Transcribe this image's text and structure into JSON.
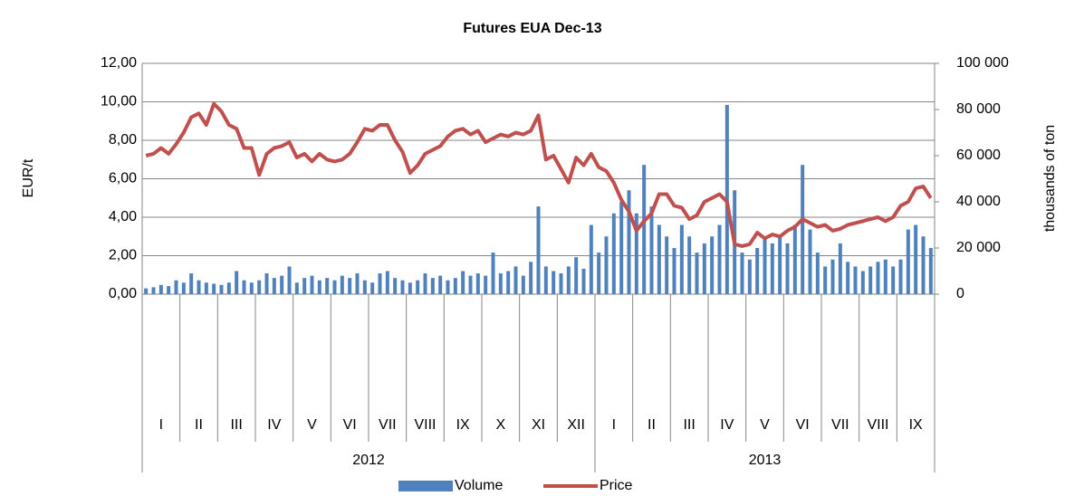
{
  "chart_data": {
    "type": "bar-line",
    "title": "Futures EUA Dec-13",
    "ylabel": "EUR/t",
    "y2label": "thousands of ton",
    "x_groups": [
      {
        "name": "2012",
        "categories": [
          "I",
          "II",
          "III",
          "IV",
          "V",
          "VI",
          "VII",
          "VIII",
          "IX",
          "X",
          "XI",
          "XII"
        ]
      },
      {
        "name": "2013",
        "categories": [
          "I",
          "II",
          "III",
          "IV",
          "V",
          "VI",
          "VII",
          "VIII",
          "IX"
        ]
      }
    ],
    "ylim": [
      0,
      12
    ],
    "yticks": [
      {
        "value": 0,
        "label": "0,00"
      },
      {
        "value": 2,
        "label": "2,00"
      },
      {
        "value": 4,
        "label": "4,00"
      },
      {
        "value": 6,
        "label": "6,00"
      },
      {
        "value": 8,
        "label": "8,00"
      },
      {
        "value": 10,
        "label": "10,00"
      },
      {
        "value": 12,
        "label": "12,00"
      }
    ],
    "y2lim": [
      0,
      100000
    ],
    "y2ticks": [
      0,
      {
        "value": 20000,
        "label": "20 000"
      },
      {
        "value": 40000,
        "label": "40 000"
      },
      {
        "value": 60000,
        "label": "60 000"
      },
      {
        "value": 80000,
        "label": "80 000"
      },
      {
        "value": 100000,
        "label": "100 000"
      }
    ],
    "grid": true,
    "legend": "bottom",
    "series": [
      {
        "name": "Volume",
        "type": "bar",
        "axis": "y2",
        "color": "#4f81bd",
        "values": [
          [
            2500,
            3000,
            4000,
            3500,
            6000
          ],
          [
            5000,
            9000,
            6000,
            5000,
            4500
          ],
          [
            4000,
            5000,
            10000,
            6000,
            5000
          ],
          [
            6000,
            9000,
            7000,
            8000,
            12000
          ],
          [
            5000,
            7000,
            8000,
            6000,
            7000
          ],
          [
            6000,
            8000,
            7000,
            9000,
            6000
          ],
          [
            5000,
            9000,
            10000,
            7000,
            6000
          ],
          [
            5000,
            6000,
            9000,
            7000,
            8000
          ],
          [
            6000,
            7000,
            10000,
            8000,
            9000
          ],
          [
            8000,
            18000,
            9000,
            10000,
            12000
          ],
          [
            8000,
            14000,
            38000,
            12000,
            10000
          ],
          [
            9000,
            12000,
            16000,
            11000,
            30000
          ],
          [
            18000,
            25000,
            35000,
            40000,
            45000
          ],
          [
            35000,
            56000,
            38000,
            30000,
            25000
          ],
          [
            20000,
            30000,
            25000,
            18000,
            22000
          ],
          [
            25000,
            30000,
            82000,
            45000,
            18000
          ],
          [
            15000,
            20000,
            25000,
            22000,
            25000
          ],
          [
            22000,
            30000,
            56000,
            28000,
            18000
          ],
          [
            12000,
            15000,
            22000,
            14000,
            12000
          ],
          [
            10000,
            12000,
            14000,
            15000,
            12000
          ],
          [
            15000,
            28000,
            30000,
            25000,
            20000
          ]
        ]
      },
      {
        "name": "Price",
        "type": "line",
        "color": "#c0504d",
        "values": [
          [
            7.2,
            7.3,
            7.6,
            7.3,
            7.8
          ],
          [
            8.4,
            9.2,
            9.4,
            8.8,
            9.9
          ],
          [
            9.5,
            8.8,
            8.6,
            7.6,
            7.6
          ],
          [
            6.2,
            7.3,
            7.6,
            7.7,
            7.9
          ],
          [
            7.1,
            7.3,
            6.9,
            7.3,
            7.0
          ],
          [
            6.9,
            7.0,
            7.3,
            7.9,
            8.6
          ],
          [
            8.5,
            8.8,
            8.8,
            8.0,
            7.4
          ],
          [
            6.3,
            6.7,
            7.3,
            7.5,
            7.7
          ],
          [
            8.2,
            8.5,
            8.6,
            8.3,
            8.5
          ],
          [
            7.9,
            8.1,
            8.3,
            8.2,
            8.4
          ],
          [
            8.3,
            8.5,
            9.3,
            7.0,
            7.2
          ],
          [
            6.5,
            5.8,
            7.1,
            6.7,
            7.3
          ],
          [
            6.6,
            6.4,
            5.8,
            4.9,
            4.3
          ],
          [
            3.3,
            3.8,
            4.2,
            5.2,
            5.2
          ],
          [
            4.6,
            4.5,
            3.9,
            4.1,
            4.8
          ],
          [
            5.0,
            5.2,
            4.8,
            2.6,
            2.5
          ],
          [
            2.6,
            3.2,
            2.9,
            3.1,
            3.0
          ],
          [
            3.3,
            3.5,
            3.9,
            3.7,
            3.5
          ],
          [
            3.6,
            3.3,
            3.4,
            3.6,
            3.7
          ],
          [
            3.8,
            3.9,
            4.0,
            3.8,
            4.0
          ],
          [
            4.6,
            4.8,
            5.5,
            5.6,
            5.0
          ]
        ]
      }
    ]
  }
}
